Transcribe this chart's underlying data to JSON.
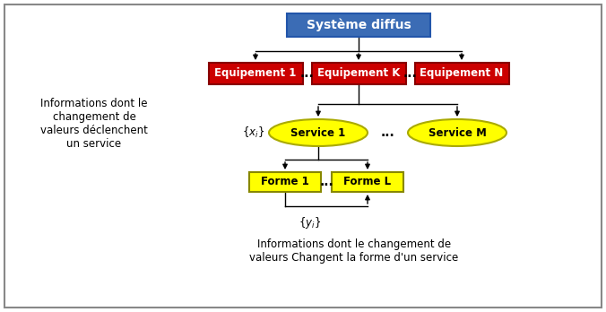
{
  "title": "Système diffus",
  "title_bg": "#3B6CB5",
  "title_text_color": "#FFFFFF",
  "equip1_label": "Equipement 1",
  "equipk_label": "Equipement K",
  "equipn_label": "Equipement N",
  "equip_bg": "#CC0000",
  "equip_border": "#880000",
  "equip_text_color": "#FFFFFF",
  "service1_label": "Service 1",
  "servicem_label": "Service M",
  "service_bg": "#FFFF00",
  "service_border": "#AAAA00",
  "service_text_color": "#000000",
  "forme1_label": "Forme 1",
  "formel_label": "Forme L",
  "forme_bg": "#FFFF00",
  "forme_border": "#888800",
  "forme_text_color": "#000000",
  "left_text": "Informations dont le\nchangement de\nvaleurs déclenchent\nun service",
  "bottom_text": "Informations dont le changement de\nvaleurs Changent la forme d'un service",
  "bg_color": "#FFFFFF",
  "border_color": "#888888",
  "dots": "...",
  "font_size_title": 10,
  "font_size_box": 8.5,
  "font_size_text": 8.5,
  "font_size_dots": 10
}
